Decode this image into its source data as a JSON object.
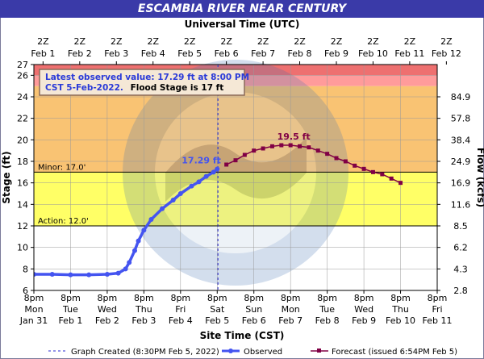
{
  "title": "ESCAMBIA RIVER NEAR CENTURY",
  "top_axis_title": "Universal Time (UTC)",
  "bottom_axis_title": "Site Time (CST)",
  "left_axis_title": "Stage (ft)",
  "right_axis_title": "Flow (kcfs)",
  "top_ticks": [
    {
      "l1": "2Z",
      "l2": "Feb  1"
    },
    {
      "l1": "2Z",
      "l2": "Feb  2"
    },
    {
      "l1": "2Z",
      "l2": "Feb  3"
    },
    {
      "l1": "2Z",
      "l2": "Feb  4"
    },
    {
      "l1": "2Z",
      "l2": "Feb  5"
    },
    {
      "l1": "2Z",
      "l2": "Feb  6"
    },
    {
      "l1": "2Z",
      "l2": "Feb  7"
    },
    {
      "l1": "2Z",
      "l2": "Feb  8"
    },
    {
      "l1": "2Z",
      "l2": "Feb  9"
    },
    {
      "l1": "2Z",
      "l2": "Feb 10"
    },
    {
      "l1": "2Z",
      "l2": "Feb 11"
    },
    {
      "l1": "2Z",
      "l2": "Feb 12"
    }
  ],
  "bottom_ticks": [
    {
      "l1": "8pm",
      "l2": "Mon",
      "l3": "Jan 31"
    },
    {
      "l1": "8pm",
      "l2": "Tue",
      "l3": "Feb 1"
    },
    {
      "l1": "8pm",
      "l2": "Wed",
      "l3": "Feb 2"
    },
    {
      "l1": "8pm",
      "l2": "Thu",
      "l3": "Feb 3"
    },
    {
      "l1": "8pm",
      "l2": "Fri",
      "l3": "Feb 4"
    },
    {
      "l1": "8pm",
      "l2": "Sat",
      "l3": "Feb 5"
    },
    {
      "l1": "8pm",
      "l2": "Sun",
      "l3": "Feb 6"
    },
    {
      "l1": "8pm",
      "l2": "Mon",
      "l3": "Feb 7"
    },
    {
      "l1": "8pm",
      "l2": "Tue",
      "l3": "Feb 8"
    },
    {
      "l1": "8pm",
      "l2": "Wed",
      "l3": "Feb 9"
    },
    {
      "l1": "8pm",
      "l2": "Thu",
      "l3": "Feb 10"
    },
    {
      "l1": "8pm",
      "l2": "Fri",
      "l3": "Feb 11"
    }
  ],
  "info_box": {
    "line1": "Latest observed value: 17.29 ft at 8:00 PM",
    "line2_blue": "CST 5-Feb-2022.",
    "line2_black": "Flood Stage is 17 ft"
  },
  "legend": {
    "graph_created": "Graph Created (8:30PM Feb 5, 2022)",
    "observed": "Observed",
    "forecast": "Forecast (issued 6:54PM Feb 5)"
  },
  "colors": {
    "title_bar": "#3a3aa8",
    "major_flood": "#ee7070",
    "moderate_flood": "#ff9b9b",
    "flood": "#f9c373",
    "minor": "#ffff66",
    "action_below": "#ffffff",
    "observed": "#4454f0",
    "forecast": "#800045"
  },
  "chart_data": {
    "type": "line",
    "title": "ESCAMBIA RIVER NEAR CENTURY",
    "xlabel": "Site Time (CST)",
    "ylabel": "Stage (ft)",
    "y2label": "Flow (kcfs)",
    "x_unit": "days since 8pm Mon Jan 31 (CST)",
    "xlim": [
      0,
      11
    ],
    "ylim": [
      6,
      27
    ],
    "y_ticks": [
      6,
      8,
      10,
      12,
      14,
      16,
      18,
      20,
      22,
      24,
      26,
      27
    ],
    "right_ticks": [
      {
        "stage": 6,
        "flow": "2.8"
      },
      {
        "stage": 8,
        "flow": "4.3"
      },
      {
        "stage": 10,
        "flow": "6.2"
      },
      {
        "stage": 12,
        "flow": "8.5"
      },
      {
        "stage": 14,
        "flow": "11.6"
      },
      {
        "stage": 16,
        "flow": "16.9"
      },
      {
        "stage": 18,
        "flow": "24.9"
      },
      {
        "stage": 20,
        "flow": "38.4"
      },
      {
        "stage": 22,
        "flow": "57.8"
      },
      {
        "stage": 24,
        "flow": "84.9"
      }
    ],
    "thresholds": [
      {
        "name": "Action",
        "label": "Action:  12.0'",
        "value": 12.0
      },
      {
        "name": "Minor",
        "label": "Minor:  17.0'",
        "value": 17.0
      }
    ],
    "bands": [
      {
        "from": 6,
        "to": 12,
        "color": "#ffffff"
      },
      {
        "from": 12,
        "to": 17,
        "color": "#ffff66"
      },
      {
        "from": 17,
        "to": 25,
        "color": "#f9c373"
      },
      {
        "from": 25,
        "to": 26,
        "color": "#ff9b9b"
      },
      {
        "from": 26,
        "to": 27,
        "color": "#ee7070"
      }
    ],
    "graph_created_x": 5.02,
    "series": [
      {
        "name": "Observed",
        "points": [
          [
            0,
            7.5
          ],
          [
            0.5,
            7.5
          ],
          [
            1.0,
            7.45
          ],
          [
            1.5,
            7.45
          ],
          [
            2.0,
            7.5
          ],
          [
            2.3,
            7.6
          ],
          [
            2.5,
            8.0
          ],
          [
            2.6,
            8.6
          ],
          [
            2.75,
            9.7
          ],
          [
            2.85,
            10.6
          ],
          [
            3.0,
            11.6
          ],
          [
            3.2,
            12.6
          ],
          [
            3.5,
            13.6
          ],
          [
            3.8,
            14.4
          ],
          [
            4.0,
            15.0
          ],
          [
            4.3,
            15.7
          ],
          [
            4.5,
            16.1
          ],
          [
            4.7,
            16.6
          ],
          [
            4.9,
            17.0
          ],
          [
            5.0,
            17.29
          ]
        ]
      },
      {
        "name": "Forecast",
        "points": [
          [
            5.25,
            17.7
          ],
          [
            5.5,
            18.1
          ],
          [
            5.75,
            18.6
          ],
          [
            6.0,
            19.0
          ],
          [
            6.25,
            19.2
          ],
          [
            6.5,
            19.4
          ],
          [
            6.75,
            19.5
          ],
          [
            7.0,
            19.5
          ],
          [
            7.25,
            19.4
          ],
          [
            7.5,
            19.3
          ],
          [
            7.75,
            19.0
          ],
          [
            8.0,
            18.7
          ],
          [
            8.25,
            18.3
          ],
          [
            8.5,
            18.0
          ],
          [
            8.75,
            17.6
          ],
          [
            9.0,
            17.3
          ],
          [
            9.25,
            17.0
          ],
          [
            9.5,
            16.8
          ],
          [
            9.75,
            16.4
          ],
          [
            10.0,
            16.0
          ]
        ]
      }
    ],
    "annotations": [
      {
        "text": "17.29 ft",
        "x": 5.0,
        "y": 17.29,
        "series": "Observed"
      },
      {
        "text": "19.5 ft",
        "x": 6.9,
        "y": 19.5,
        "series": "Forecast"
      }
    ]
  }
}
